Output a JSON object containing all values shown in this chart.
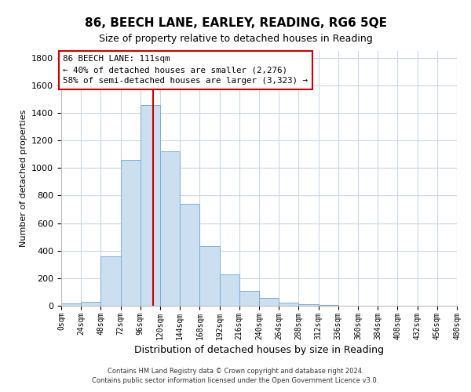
{
  "title": "86, BEECH LANE, EARLEY, READING, RG6 5QE",
  "subtitle": "Size of property relative to detached houses in Reading",
  "xlabel": "Distribution of detached houses by size in Reading",
  "ylabel": "Number of detached properties",
  "footer_line1": "Contains HM Land Registry data © Crown copyright and database right 2024.",
  "footer_line2": "Contains public sector information licensed under the Open Government Licence v3.0.",
  "bin_edges": [
    0,
    24,
    48,
    72,
    96,
    120,
    144,
    168,
    192,
    216,
    240,
    264,
    288,
    312,
    336,
    360,
    384,
    408,
    432,
    456,
    480
  ],
  "bin_counts": [
    15,
    30,
    360,
    1060,
    1460,
    1120,
    740,
    430,
    225,
    110,
    55,
    20,
    10,
    5,
    2,
    1,
    0,
    0,
    0,
    0
  ],
  "bar_color": "#ccdff0",
  "bar_edge_color": "#7aafd4",
  "vline_x": 111,
  "vline_color": "#cc0000",
  "annotation_text": "86 BEECH LANE: 111sqm\n← 40% of detached houses are smaller (2,276)\n58% of semi-detached houses are larger (3,323) →",
  "annotation_box_color": "#ffffff",
  "annotation_box_edge_color": "#cc0000",
  "ylim": [
    0,
    1850
  ],
  "yticks": [
    0,
    200,
    400,
    600,
    800,
    1000,
    1200,
    1400,
    1600,
    1800
  ],
  "xtick_labels": [
    "0sqm",
    "24sqm",
    "48sqm",
    "72sqm",
    "96sqm",
    "120sqm",
    "144sqm",
    "168sqm",
    "192sqm",
    "216sqm",
    "240sqm",
    "264sqm",
    "288sqm",
    "312sqm",
    "336sqm",
    "360sqm",
    "384sqm",
    "408sqm",
    "432sqm",
    "456sqm",
    "480sqm"
  ],
  "background_color": "#ffffff",
  "grid_color": "#c8d8ea"
}
